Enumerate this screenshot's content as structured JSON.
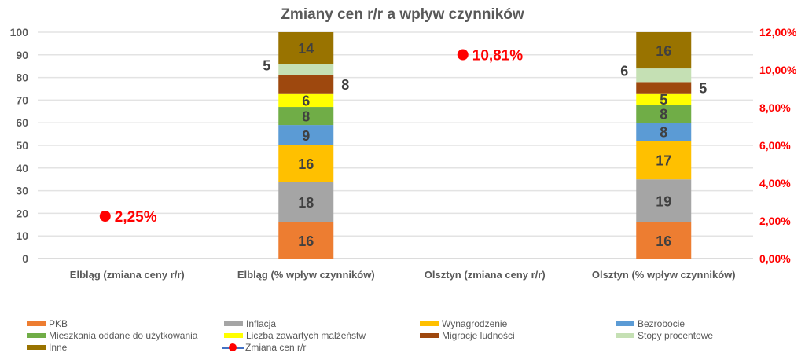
{
  "chart_data": {
    "type": "bar",
    "subtype": "stacked-bar-with-line",
    "title": "Zmiany cen r/r a wpływ czynników",
    "categories": [
      "Elbląg (zmiana ceny r/r)",
      "Elbląg (% wpływ czynników)",
      "Olsztyn (zmiana ceny r/r)",
      "Olsztyn (% wpływ czynników)"
    ],
    "y_left": {
      "ylim": [
        0,
        100
      ],
      "ticks": [
        "0",
        "10",
        "20",
        "30",
        "40",
        "50",
        "60",
        "70",
        "80",
        "90",
        "100"
      ],
      "tick_values": [
        0,
        10,
        20,
        30,
        40,
        50,
        60,
        70,
        80,
        90,
        100
      ]
    },
    "y_right": {
      "ylim": [
        0,
        12
      ],
      "ticks": [
        "0,00%",
        "2,00%",
        "4,00%",
        "6,00%",
        "8,00%",
        "10,00%",
        "12,00%"
      ],
      "tick_values": [
        0,
        2,
        4,
        6,
        8,
        10,
        12
      ],
      "color": "#ff0000"
    },
    "grid": true,
    "legend_position": "bottom",
    "series": [
      {
        "name": "PKB",
        "color": "#ed7d31",
        "values": [
          null,
          16,
          null,
          16
        ],
        "labels": [
          "",
          "16",
          "",
          "16"
        ]
      },
      {
        "name": "Inflacja",
        "color": "#a5a5a5",
        "values": [
          null,
          18,
          null,
          19
        ],
        "labels": [
          "",
          "18",
          "",
          "19"
        ]
      },
      {
        "name": "Wynagrodzenie",
        "color": "#ffc000",
        "values": [
          null,
          16,
          null,
          17
        ],
        "labels": [
          "",
          "16",
          "",
          "17"
        ]
      },
      {
        "name": "Bezrobocie",
        "color": "#5b9bd5",
        "values": [
          null,
          9,
          null,
          8
        ],
        "labels": [
          "",
          "9",
          "",
          "8"
        ]
      },
      {
        "name": "Mieszkania oddane do użytkowania",
        "color": "#70ad47",
        "values": [
          null,
          8,
          null,
          8
        ],
        "labels": [
          "",
          "8",
          "",
          "8"
        ]
      },
      {
        "name": "Liczba zawartych małżeństw",
        "color": "#ffff00",
        "values": [
          null,
          6,
          null,
          5
        ],
        "labels": [
          "",
          "6",
          "",
          "5"
        ]
      },
      {
        "name": "Migracje ludności",
        "color": "#9e480e",
        "values": [
          null,
          8,
          null,
          5
        ],
        "labels": [
          "",
          "8",
          "",
          "5"
        ]
      },
      {
        "name": "Stopy procentowe",
        "color": "#c5e0b4",
        "values": [
          null,
          5,
          null,
          6
        ],
        "labels": [
          "",
          "5",
          "",
          "6"
        ]
      },
      {
        "name": "Inne",
        "color": "#997300",
        "values": [
          null,
          14,
          null,
          16
        ],
        "labels": [
          "",
          "14",
          "",
          "16"
        ]
      }
    ],
    "line_series": {
      "name": "Zmiana cen r/r",
      "axis": "right",
      "line_color": "#4472c4",
      "marker_color": "#ff0000",
      "values": [
        2.25,
        null,
        10.81,
        null
      ],
      "labels": [
        "2,25%",
        "",
        "10,81%",
        ""
      ]
    }
  },
  "legend": {
    "items": [
      {
        "name": "PKB",
        "kind": "bar",
        "color": "#ed7d31"
      },
      {
        "name": "Inflacja",
        "kind": "bar",
        "color": "#a5a5a5"
      },
      {
        "name": "Wynagrodzenie",
        "kind": "bar",
        "color": "#ffc000"
      },
      {
        "name": "Bezrobocie",
        "kind": "bar",
        "color": "#5b9bd5"
      },
      {
        "name": "Mieszkania oddane do użytkowania",
        "kind": "bar",
        "color": "#70ad47"
      },
      {
        "name": "Liczba zawartych małżeństw",
        "kind": "bar",
        "color": "#ffff00"
      },
      {
        "name": "Migracje ludności",
        "kind": "bar",
        "color": "#9e480e"
      },
      {
        "name": "Stopy procentowe",
        "kind": "bar",
        "color": "#c5e0b4"
      },
      {
        "name": "Inne",
        "kind": "bar",
        "color": "#997300"
      },
      {
        "name": "Zmiana cen r/r",
        "kind": "line",
        "color": "#4472c4"
      }
    ]
  }
}
